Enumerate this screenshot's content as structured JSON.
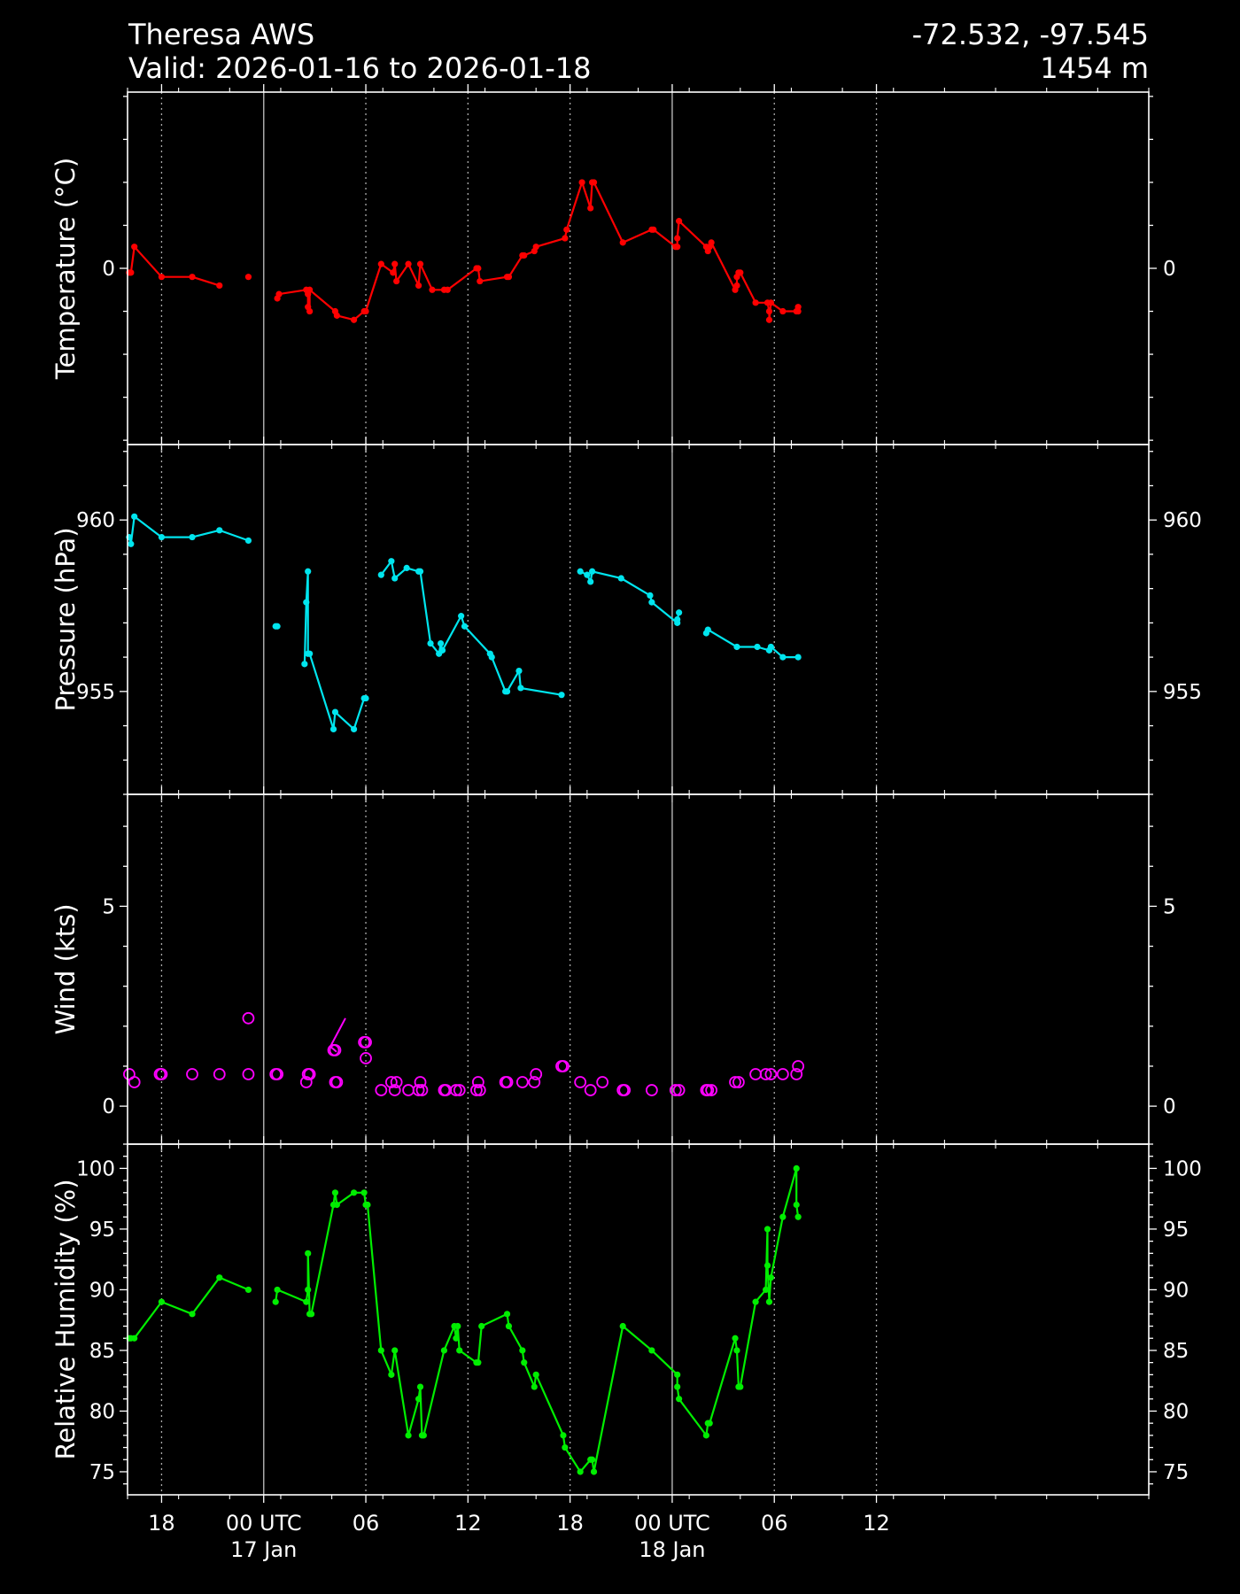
{
  "header": {
    "station": "Theresa AWS",
    "valid": "Valid: 2026-01-16 to 2026-01-18",
    "coords": "-72.532, -97.545",
    "elevation": "1454 m"
  },
  "colors": {
    "temperature": "#ff0000",
    "pressure": "#00e5ee",
    "wind": "#ff00ff",
    "humidity": "#00ee00",
    "frame": "#ffffff"
  },
  "chart_data": {
    "type": "line",
    "x_unit": "hours since 2026-01-16 00 UTC",
    "xlim": [
      16,
      76
    ],
    "x_ticks": [
      {
        "x": 18,
        "label": "18",
        "major": false
      },
      {
        "x": 24,
        "label": "00 UTC\n17 Jan",
        "major": true
      },
      {
        "x": 30,
        "label": "06",
        "major": false
      },
      {
        "x": 36,
        "label": "12",
        "major": false
      },
      {
        "x": 42,
        "label": "18",
        "major": false
      },
      {
        "x": 48,
        "label": "00 UTC\n18 Jan",
        "major": true
      },
      {
        "x": 54,
        "label": "06",
        "major": false
      },
      {
        "x": 60,
        "label": "12",
        "major": false
      }
    ],
    "panels": [
      {
        "key": "temperature",
        "ylabel": "Temperature (°C)",
        "ylim": [
          -4.1,
          4.1
        ],
        "yticks": [
          0
        ],
        "minor": 1,
        "style": "line",
        "segments": [
          [
            [
              16.1,
              -0.1
            ],
            [
              16.2,
              -0.1
            ],
            [
              16.4,
              0.5
            ],
            [
              18.0,
              -0.2
            ],
            [
              19.8,
              -0.2
            ],
            [
              21.4,
              -0.4
            ]
          ],
          [
            [
              23.1,
              -0.2
            ]
          ],
          [
            [
              24.8,
              -0.7
            ],
            [
              24.9,
              -0.6
            ],
            [
              26.5,
              -0.5
            ],
            [
              26.6,
              -0.6
            ],
            [
              26.6,
              -0.9
            ],
            [
              26.7,
              -1.0
            ],
            [
              26.7,
              -0.5
            ],
            [
              28.2,
              -1.0
            ],
            [
              28.3,
              -1.1
            ],
            [
              29.3,
              -1.2
            ],
            [
              29.9,
              -1.0
            ],
            [
              30.0,
              -1.0
            ],
            [
              30.9,
              0.1
            ],
            [
              31.6,
              -0.1
            ],
            [
              31.7,
              0.1
            ],
            [
              31.8,
              -0.3
            ],
            [
              32.5,
              0.1
            ],
            [
              33.1,
              -0.4
            ],
            [
              33.2,
              0.1
            ],
            [
              33.9,
              -0.5
            ],
            [
              34.6,
              -0.5
            ],
            [
              34.8,
              -0.5
            ],
            [
              36.5,
              0.0
            ],
            [
              36.6,
              0.0
            ],
            [
              36.7,
              -0.3
            ],
            [
              38.3,
              -0.2
            ],
            [
              38.4,
              -0.2
            ],
            [
              39.2,
              0.3
            ],
            [
              39.3,
              0.3
            ],
            [
              39.9,
              0.4
            ],
            [
              40.0,
              0.5
            ],
            [
              41.7,
              0.7
            ],
            [
              41.8,
              0.9
            ],
            [
              42.7,
              2.0
            ],
            [
              43.2,
              1.4
            ],
            [
              43.3,
              2.0
            ],
            [
              43.4,
              2.0
            ],
            [
              45.1,
              0.6
            ],
            [
              46.8,
              0.9
            ],
            [
              46.9,
              0.9
            ],
            [
              48.2,
              0.5
            ],
            [
              48.3,
              0.5
            ],
            [
              48.3,
              0.7
            ],
            [
              48.4,
              1.1
            ],
            [
              50.0,
              0.5
            ],
            [
              50.1,
              0.4
            ],
            [
              50.2,
              0.5
            ],
            [
              50.3,
              0.6
            ],
            [
              51.7,
              -0.5
            ],
            [
              51.8,
              -0.4
            ],
            [
              51.8,
              -0.2
            ],
            [
              51.9,
              -0.1
            ],
            [
              52.0,
              -0.1
            ],
            [
              52.9,
              -0.8
            ],
            [
              53.6,
              -0.8
            ],
            [
              53.7,
              -1.0
            ],
            [
              53.7,
              -1.2
            ],
            [
              53.8,
              -0.8
            ],
            [
              54.5,
              -1.0
            ],
            [
              55.3,
              -1.0
            ],
            [
              55.4,
              -1.0
            ],
            [
              55.4,
              -0.9
            ]
          ]
        ]
      },
      {
        "key": "pressure",
        "ylabel": "Pressure (hPa)",
        "ylim": [
          952.0,
          962.2
        ],
        "yticks": [
          955,
          960
        ],
        "minor": 1,
        "style": "line",
        "segments": [
          [
            [
              16.1,
              959.5
            ],
            [
              16.2,
              959.3
            ],
            [
              16.4,
              960.1
            ],
            [
              18.0,
              959.5
            ],
            [
              19.8,
              959.5
            ],
            [
              21.4,
              959.7
            ],
            [
              23.1,
              959.4
            ]
          ],
          [
            [
              24.7,
              956.9
            ],
            [
              24.8,
              956.9
            ]
          ],
          [
            [
              26.4,
              955.8
            ],
            [
              26.5,
              957.6
            ],
            [
              26.6,
              958.5
            ],
            [
              26.6,
              956.1
            ],
            [
              26.7,
              956.1
            ],
            [
              28.1,
              953.9
            ],
            [
              28.2,
              954.4
            ],
            [
              29.3,
              953.9
            ],
            [
              29.9,
              954.8
            ],
            [
              30.0,
              954.8
            ]
          ],
          [
            [
              30.9,
              958.4
            ],
            [
              31.5,
              958.8
            ],
            [
              31.7,
              958.3
            ],
            [
              32.4,
              958.6
            ],
            [
              33.1,
              958.5
            ],
            [
              33.2,
              958.5
            ],
            [
              33.8,
              956.4
            ],
            [
              34.3,
              956.1
            ],
            [
              34.4,
              956.4
            ],
            [
              34.5,
              956.2
            ],
            [
              35.6,
              957.2
            ],
            [
              35.8,
              956.9
            ],
            [
              37.3,
              956.1
            ],
            [
              37.4,
              956.0
            ],
            [
              38.2,
              955.0
            ],
            [
              38.3,
              955.0
            ],
            [
              39.0,
              955.6
            ],
            [
              39.1,
              955.1
            ],
            [
              41.5,
              954.9
            ]
          ],
          [
            [
              42.6,
              958.5
            ],
            [
              43.0,
              958.4
            ],
            [
              43.2,
              958.2
            ],
            [
              43.3,
              958.5
            ],
            [
              45.0,
              958.3
            ],
            [
              46.7,
              957.8
            ],
            [
              46.8,
              957.6
            ],
            [
              48.3,
              957.0
            ],
            [
              48.3,
              957.1
            ],
            [
              48.4,
              957.3
            ]
          ],
          [
            [
              50.0,
              956.7
            ],
            [
              50.1,
              956.8
            ],
            [
              51.8,
              956.3
            ],
            [
              53.0,
              956.3
            ],
            [
              53.7,
              956.2
            ],
            [
              53.8,
              956.3
            ],
            [
              54.5,
              956.0
            ],
            [
              55.4,
              956.0
            ]
          ]
        ]
      },
      {
        "key": "wind",
        "ylabel": "Wind (kts)",
        "ylim": [
          -0.95,
          7.8
        ],
        "yticks": [
          0,
          5
        ],
        "minor": 1,
        "style": "calm-circles",
        "points": [
          [
            16.1,
            0.8
          ],
          [
            16.4,
            0.6
          ],
          [
            17.9,
            0.8
          ],
          [
            18.0,
            0.8
          ],
          [
            19.8,
            0.8
          ],
          [
            21.4,
            0.8
          ],
          [
            23.1,
            0.8
          ],
          [
            23.1,
            2.2
          ],
          [
            24.7,
            0.8
          ],
          [
            24.8,
            0.8
          ],
          [
            26.5,
            0.6
          ],
          [
            26.6,
            0.8
          ],
          [
            26.7,
            0.8
          ],
          [
            28.1,
            1.4
          ],
          [
            28.2,
            1.4
          ],
          [
            28.2,
            0.6
          ],
          [
            28.3,
            0.6
          ],
          [
            29.9,
            1.6
          ],
          [
            30.0,
            1.6
          ],
          [
            30.0,
            1.2
          ],
          [
            30.9,
            0.4
          ],
          [
            31.5,
            0.6
          ],
          [
            31.7,
            0.4
          ],
          [
            31.8,
            0.6
          ],
          [
            32.5,
            0.4
          ],
          [
            33.1,
            0.4
          ],
          [
            33.2,
            0.6
          ],
          [
            33.3,
            0.4
          ],
          [
            34.6,
            0.4
          ],
          [
            34.7,
            0.4
          ],
          [
            35.3,
            0.4
          ],
          [
            35.5,
            0.4
          ],
          [
            36.5,
            0.4
          ],
          [
            36.6,
            0.6
          ],
          [
            36.7,
            0.4
          ],
          [
            38.2,
            0.6
          ],
          [
            38.3,
            0.6
          ],
          [
            39.2,
            0.6
          ],
          [
            39.9,
            0.6
          ],
          [
            40.0,
            0.8
          ],
          [
            41.5,
            1.0
          ],
          [
            41.6,
            1.0
          ],
          [
            42.6,
            0.6
          ],
          [
            43.2,
            0.4
          ],
          [
            43.9,
            0.6
          ],
          [
            45.1,
            0.4
          ],
          [
            45.2,
            0.4
          ],
          [
            46.8,
            0.4
          ],
          [
            48.2,
            0.4
          ],
          [
            48.4,
            0.4
          ],
          [
            50.0,
            0.4
          ],
          [
            50.1,
            0.4
          ],
          [
            50.3,
            0.4
          ],
          [
            51.7,
            0.6
          ],
          [
            51.9,
            0.6
          ],
          [
            52.9,
            0.8
          ],
          [
            53.5,
            0.8
          ],
          [
            53.8,
            0.8
          ],
          [
            54.5,
            0.8
          ],
          [
            55.3,
            0.8
          ],
          [
            55.4,
            1.0
          ]
        ],
        "barb": {
          "x": 28.8,
          "value": 2.2
        }
      },
      {
        "key": "humidity",
        "ylabel": "Relative Humidity (%)",
        "ylim": [
          73.1,
          102.0
        ],
        "yticks": [
          75,
          80,
          85,
          90,
          95,
          100
        ],
        "minor": 1,
        "style": "line",
        "segments": [
          [
            [
              16.1,
              86
            ],
            [
              16.2,
              86
            ],
            [
              16.4,
              86
            ],
            [
              18.0,
              89
            ],
            [
              19.8,
              88
            ],
            [
              21.4,
              91
            ],
            [
              23.1,
              90
            ]
          ],
          [
            [
              24.7,
              89
            ],
            [
              24.8,
              90
            ],
            [
              26.5,
              89
            ],
            [
              26.6,
              90
            ],
            [
              26.6,
              93
            ],
            [
              26.7,
              88
            ],
            [
              26.8,
              88
            ],
            [
              28.1,
              97
            ],
            [
              28.2,
              98
            ],
            [
              28.3,
              97
            ],
            [
              29.3,
              98
            ],
            [
              29.9,
              98
            ],
            [
              30.0,
              97
            ],
            [
              30.1,
              97
            ],
            [
              30.9,
              85
            ],
            [
              31.5,
              83
            ],
            [
              31.7,
              85
            ],
            [
              32.5,
              78
            ],
            [
              33.1,
              81
            ],
            [
              33.2,
              82
            ],
            [
              33.3,
              78
            ],
            [
              33.4,
              78
            ],
            [
              34.6,
              85
            ],
            [
              35.2,
              87
            ],
            [
              35.3,
              86
            ],
            [
              35.4,
              87
            ],
            [
              35.5,
              85
            ],
            [
              36.5,
              84
            ],
            [
              36.6,
              84
            ],
            [
              36.8,
              87
            ],
            [
              38.3,
              88
            ],
            [
              38.4,
              87
            ],
            [
              39.2,
              85
            ],
            [
              39.3,
              84
            ],
            [
              39.9,
              82
            ],
            [
              40.0,
              83
            ],
            [
              41.6,
              78
            ],
            [
              41.7,
              77
            ],
            [
              42.6,
              75
            ],
            [
              43.2,
              76
            ],
            [
              43.3,
              76
            ],
            [
              43.4,
              75
            ],
            [
              45.1,
              87
            ],
            [
              46.8,
              85
            ],
            [
              48.3,
              83
            ],
            [
              48.3,
              82
            ],
            [
              48.4,
              81
            ],
            [
              50.0,
              78
            ],
            [
              50.1,
              79
            ],
            [
              50.2,
              79
            ],
            [
              51.7,
              86
            ],
            [
              51.8,
              85
            ],
            [
              51.9,
              82
            ],
            [
              52.0,
              82
            ],
            [
              52.9,
              89
            ],
            [
              53.5,
              90
            ],
            [
              53.6,
              95
            ],
            [
              53.6,
              92
            ],
            [
              53.7,
              89
            ],
            [
              53.8,
              91
            ],
            [
              54.5,
              96
            ],
            [
              55.3,
              100
            ],
            [
              55.3,
              97
            ],
            [
              55.4,
              96
            ]
          ]
        ]
      }
    ]
  }
}
